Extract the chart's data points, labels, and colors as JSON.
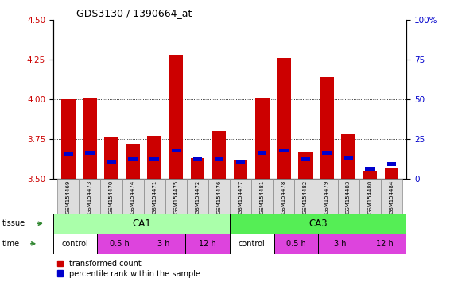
{
  "title": "GDS3130 / 1390664_at",
  "samples": [
    "GSM154469",
    "GSM154473",
    "GSM154470",
    "GSM154474",
    "GSM154471",
    "GSM154475",
    "GSM154472",
    "GSM154476",
    "GSM154477",
    "GSM154481",
    "GSM154478",
    "GSM154482",
    "GSM154479",
    "GSM154483",
    "GSM154480",
    "GSM154484"
  ],
  "red_values": [
    4.0,
    4.01,
    3.76,
    3.72,
    3.77,
    4.28,
    3.63,
    3.8,
    3.62,
    4.01,
    4.26,
    3.67,
    4.14,
    3.78,
    3.55,
    3.57
  ],
  "blue_values": [
    3.65,
    3.66,
    3.6,
    3.62,
    3.62,
    3.68,
    3.62,
    3.62,
    3.6,
    3.66,
    3.68,
    3.62,
    3.66,
    3.63,
    3.56,
    3.59
  ],
  "ymin": 3.5,
  "ymax": 4.5,
  "yticks_left": [
    3.5,
    3.75,
    4.0,
    4.25,
    4.5
  ],
  "yticks_right_vals": [
    0,
    25,
    50,
    75,
    100
  ],
  "yright_labels": [
    "0",
    "25",
    "50",
    "75",
    "100%"
  ],
  "bar_color_red": "#cc0000",
  "bar_color_blue": "#0000cc",
  "axis_left_color": "#cc0000",
  "axis_right_color": "#0000cc",
  "ca1_color": "#aaffaa",
  "ca3_color": "#55ee55",
  "time_color_control": "#ffffff",
  "time_color_other": "#dd44dd",
  "sample_box_color": "#dddddd",
  "legend_red": "transformed count",
  "legend_blue": "percentile rank within the sample",
  "tissue_arrow_color": "#338833",
  "time_arrow_color": "#338833"
}
